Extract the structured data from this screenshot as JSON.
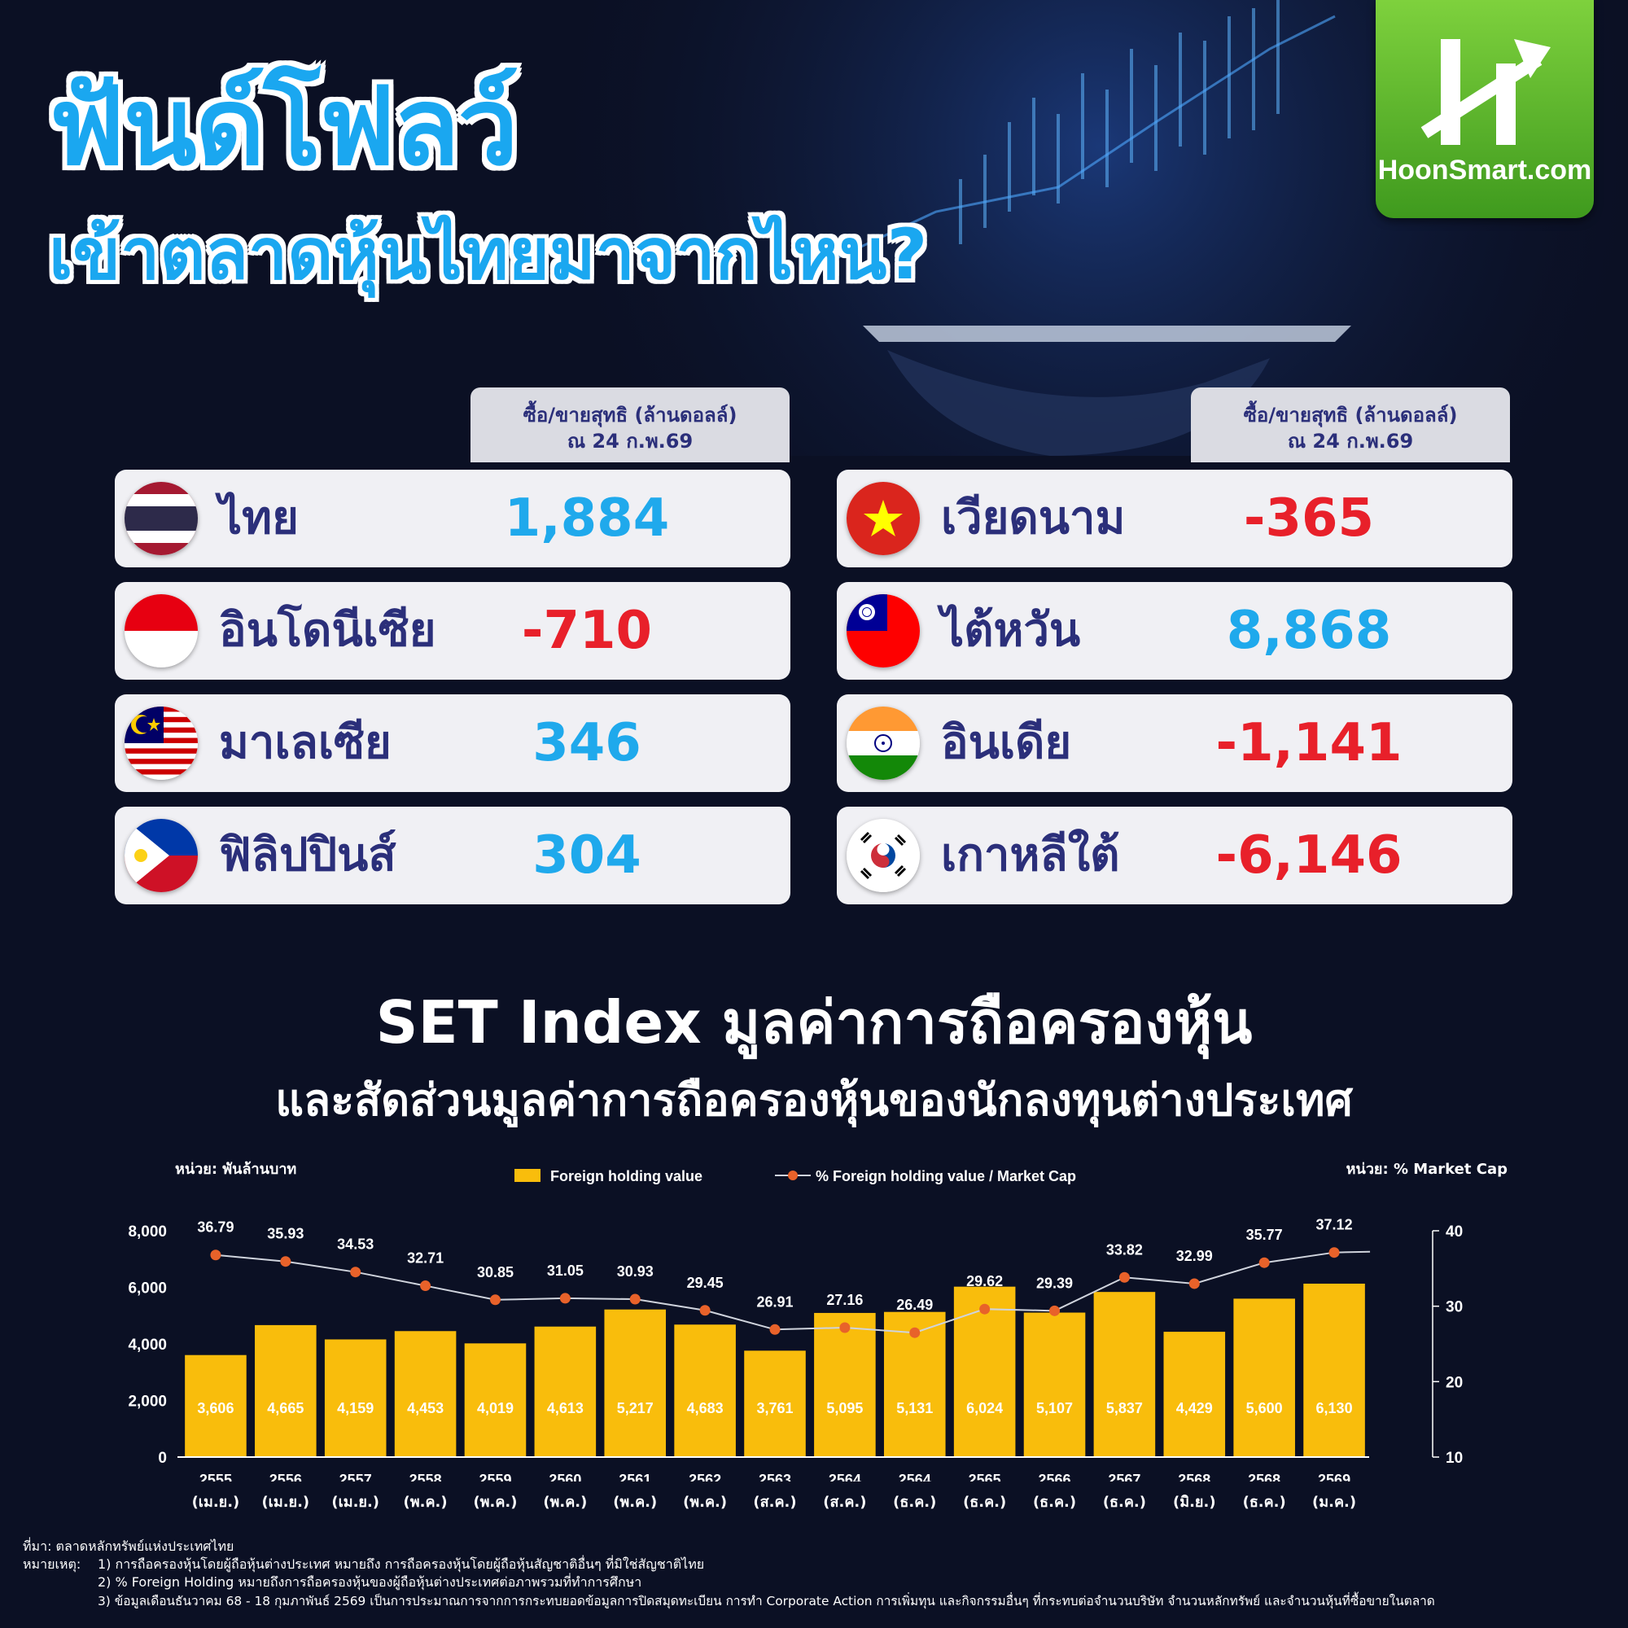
{
  "header": {
    "title_line1": "ฟันด์โฟลว์",
    "title_line2": "เข้าตลาดหุ้นไทยมาจากไหน?",
    "logo_text": "HoonSmart.com"
  },
  "table": {
    "column_header": "ซื้อ/ขายสุทธิ (ล้านดอลล์)",
    "column_subheader": "ณ 24  ก.พ.69",
    "left": [
      {
        "country": "ไทย",
        "value": "1,884",
        "flag": "thailand-flag-icon",
        "sign": "pos"
      },
      {
        "country": "อินโดนีเซีย",
        "value": "-710",
        "flag": "indonesia-flag-icon",
        "sign": "neg"
      },
      {
        "country": "มาเลเซีย",
        "value": "346",
        "flag": "malaysia-flag-icon",
        "sign": "pos"
      },
      {
        "country": "ฟิลิปปินส์",
        "value": "304",
        "flag": "philippines-flag-icon",
        "sign": "pos"
      }
    ],
    "right": [
      {
        "country": "เวียดนาม",
        "value": "-365",
        "flag": "vietnam-flag-icon",
        "sign": "neg"
      },
      {
        "country": "ไต้หวัน",
        "value": "8,868",
        "flag": "taiwan-flag-icon",
        "sign": "pos"
      },
      {
        "country": "อินเดีย",
        "value": "-1,141",
        "flag": "india-flag-icon",
        "sign": "neg"
      },
      {
        "country": "เกาหลีใต้",
        "value": "-6,146",
        "flag": "korea-flag-icon",
        "sign": "neg"
      }
    ],
    "colors": {
      "positive": "#1fa9ec",
      "negative": "#e8202a",
      "name": "#2b2f7a"
    }
  },
  "section": {
    "title": "SET Index มูลค่าการถือครองหุ้น",
    "subtitle": "และสัดส่วนมูลค่าการถือครองหุ้นของนักลงทุนต่างประเทศ"
  },
  "chart_data": {
    "type": "bar",
    "left_unit": "หน่วย: พันล้านบาท",
    "right_unit": "หน่วย: % Market Cap",
    "categories": [
      [
        "2555",
        "(เม.ย.)"
      ],
      [
        "2556",
        "(เม.ย.)"
      ],
      [
        "2557",
        "(เม.ย.)"
      ],
      [
        "2558",
        "(พ.ค.)"
      ],
      [
        "2559",
        "(พ.ค.)"
      ],
      [
        "2560",
        "(พ.ค.)"
      ],
      [
        "2561",
        "(พ.ค.)"
      ],
      [
        "2562",
        "(พ.ค.)"
      ],
      [
        "2563",
        "(ส.ค.)"
      ],
      [
        "2564",
        "(ส.ค.)"
      ],
      [
        "2564",
        "(ธ.ค.)"
      ],
      [
        "2565",
        "(ธ.ค.)"
      ],
      [
        "2566",
        "(ธ.ค.)"
      ],
      [
        "2567",
        "(ธ.ค.)"
      ],
      [
        "2568",
        "(มิ.ย.)"
      ],
      [
        "2568",
        "(ธ.ค.)"
      ],
      [
        "2569",
        "(ม.ค.)"
      ]
    ],
    "series": [
      {
        "name": "Foreign holding value",
        "kind": "bar",
        "axis": "left",
        "color": "#f9bd0c",
        "values": [
          3606,
          4665,
          4159,
          4453,
          4019,
          4613,
          5217,
          4683,
          3761,
          5095,
          5131,
          6024,
          5107,
          5837,
          4429,
          5600,
          6130
        ],
        "labels": [
          "3,606",
          "4,665",
          "4,159",
          "4,453",
          "4,019",
          "4,613",
          "5,217",
          "4,683",
          "3,761",
          "5,095",
          "5,131",
          "6,024",
          "5,107",
          "5,837",
          "4,429",
          "5,600",
          "6,130"
        ]
      },
      {
        "name": "% Foreign holding value / Market Cap",
        "kind": "line",
        "axis": "right",
        "color": "#e8622a",
        "values": [
          36.79,
          35.93,
          34.53,
          32.71,
          30.85,
          31.05,
          30.93,
          29.45,
          26.91,
          27.16,
          26.49,
          29.62,
          29.39,
          33.82,
          32.99,
          35.77,
          37.12
        ],
        "labels": [
          "36.79",
          "35.93",
          "34.53",
          "32.71",
          "30.85",
          "31.05",
          "30.93",
          "29.45",
          "26.91",
          "27.16",
          "26.49",
          "29.62",
          "29.39",
          "33.82",
          "32.99",
          "35.77",
          "37.12"
        ]
      }
    ],
    "ylim_left": [
      0,
      8000
    ],
    "yticks_left": [
      "0",
      "2,000",
      "4,000",
      "6,000",
      "8,000"
    ],
    "ylim_right": [
      10,
      40
    ],
    "yticks_right": [
      "10",
      "20",
      "30",
      "40"
    ],
    "legend_placement": "top-center"
  },
  "footnotes": {
    "source": "ที่มา: ตลาดหลักทรัพย์แห่งประเทศไทย",
    "remark_label": "หมายเหตุ:",
    "items": [
      "1)   การถือครองหุ้นโดยผู้ถือหุ้นต่างประเทศ หมายถึง การถือครองหุ้นโดยผู้ถือหุ้นสัญชาติอื่นๆ ที่มิใช่สัญชาติไทย",
      "2)   % Foreign Holding หมายถึงการถือครองหุ้นของผู้ถือหุ้นต่างประเทศต่อภาพรวมที่ทำการศึกษา",
      "3)   ข้อมูลเดือนธันวาคม 68 - 18 กุมภาพันธ์ 2569 เป็นการประมาณการจากการกระทบยอดข้อมูลการปิดสมุดทะเบียน การทำ Corporate Action การเพิ่มทุน และกิจกรรมอื่นๆ ที่กระทบต่อจำนวนบริษัท จำนวนหลักทรัพย์ และจำนวนหุ้นที่ซื้อขายในตลาด"
    ]
  }
}
